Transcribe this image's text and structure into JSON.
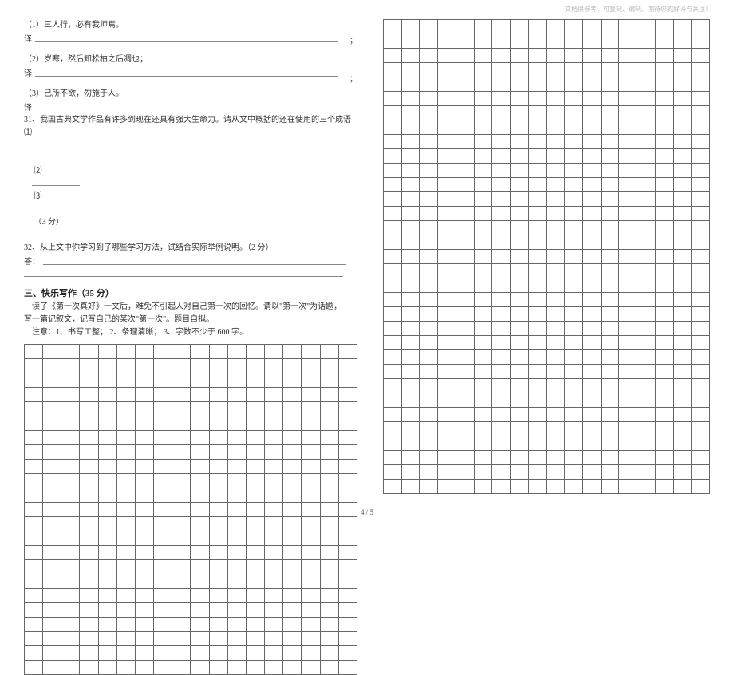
{
  "header_note": "文档供参考，可复制、编制、期待您的好评与关注！",
  "q1_num": "（1）三人行，必有我师焉。",
  "translate_label": "译",
  "q2_num": "（2）岁寒，然后知松柏之后凋也；",
  "q3_num": "（3）己所不欲，勿施于人。",
  "q31": "31、我国古典文学作品有许多到现在还具有强大生命力。请从文中概括的还在使用的三个成语 ⑴",
  "q31_blanks_row": "            ⑵            ⑶           （3 分）",
  "q32": "32、从上文中你学习到了哪些学习方法，试结合实际举例说明。（2 分）",
  "answer_label": "答：",
  "section3": "三、快乐写作（35 分）",
  "essay_line1": "    读了《第一次真好》一文后，难免不引起人对自己第一次的回忆。请以\"第一次\"为话题，",
  "essay_line2": "写一篇记叙文，记写自己的某次\"第一次\"。题目自拟。",
  "essay_note": "    注意：1、书写工整； 2、条理清晰； 3、字数不少于 600 字。",
  "left_grid": {
    "rows": 23,
    "cols": 18
  },
  "right_grid": {
    "rows": 33,
    "cols": 18
  },
  "footer": "4 / 5",
  "colors": {
    "text": "#333333",
    "heading": "#222222",
    "grid_border": "#666666",
    "header_note": "#b8b8b8",
    "background": "#ffffff"
  }
}
